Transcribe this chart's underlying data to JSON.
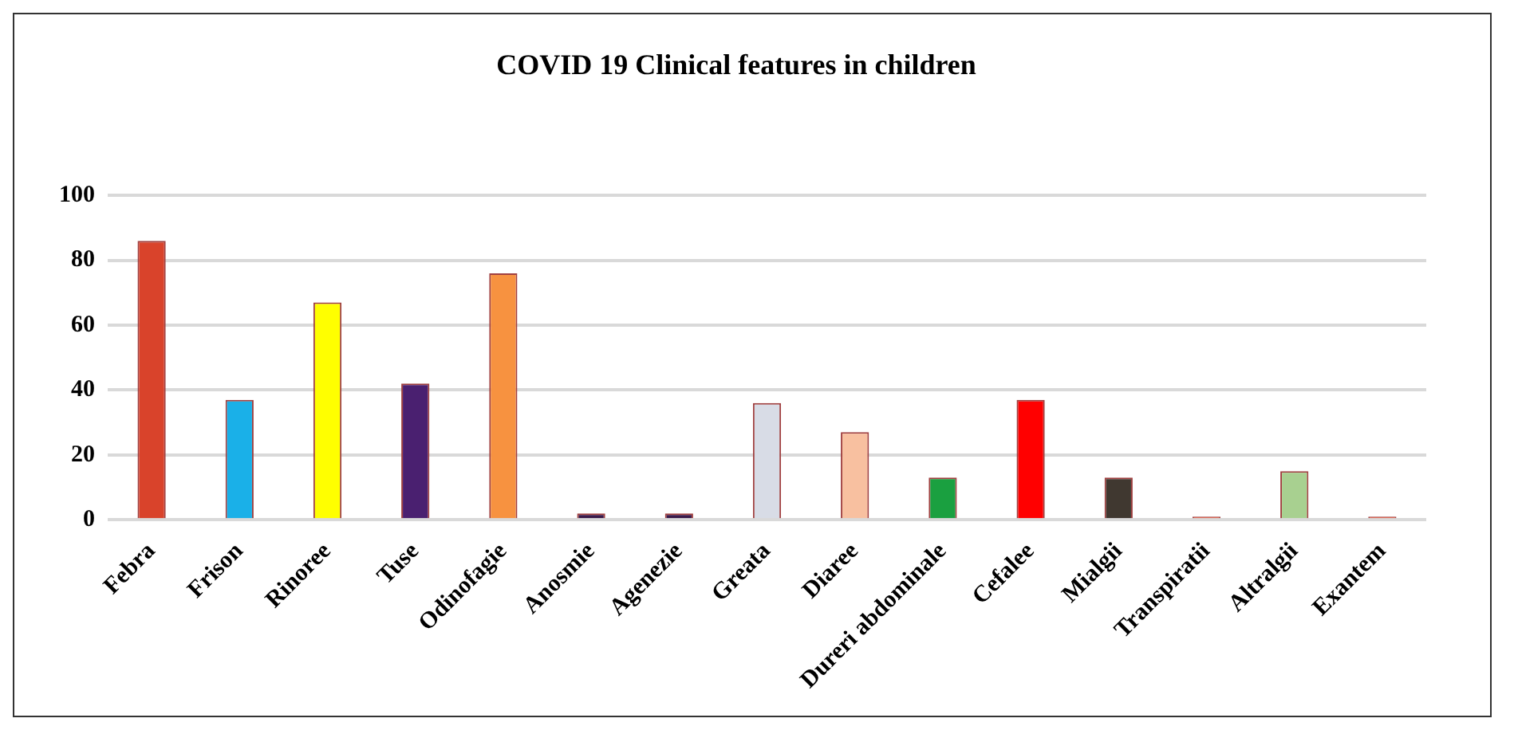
{
  "chart_data": {
    "type": "bar",
    "title": "COVID 19 Clinical features in children",
    "categories": [
      "Febra",
      "Frison",
      "Rinoree",
      "Tuse",
      "Odinofagie",
      "Anosmie",
      "Agenezie",
      "Greata",
      "Diaree",
      "Dureri abdominale",
      "Cefalee",
      "Mialgii",
      "Transpiratii",
      "Altralgii",
      "Exantem"
    ],
    "values": [
      86,
      37,
      67,
      42,
      76,
      2,
      2,
      36,
      27,
      13,
      37,
      13,
      1,
      15,
      1
    ],
    "colors": [
      "#d9432b",
      "#1ab0e8",
      "#ffff00",
      "#4a2070",
      "#f79240",
      "#3a1a4a",
      "#3a1a4a",
      "#d8dce6",
      "#f8c0a0",
      "#1aa040",
      "#ff0000",
      "#403830",
      "#d84a30",
      "#a8d090",
      "#d84a30"
    ],
    "ylim": [
      0,
      100
    ],
    "yticks": [
      0,
      20,
      40,
      60,
      80,
      100
    ],
    "grid": "y"
  }
}
